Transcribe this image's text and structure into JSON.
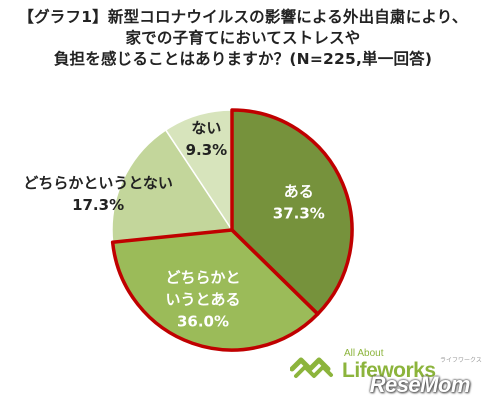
{
  "title_lines": [
    "【グラフ1】新型コロナウイルスの影響による外出自粛により、",
    "家での子育てにおいてストレスや",
    "負担を感じることはありますか？(N=225,単一回答)"
  ],
  "chart_data": {
    "type": "pie",
    "title": "【グラフ1】新型コロナウイルスの影響による外出自粛により、家での子育てにおいてストレスや負担を感じることはありますか？(N=225,単一回答)",
    "slices": [
      {
        "label_lines": [
          "ある"
        ],
        "value": 37.3,
        "value_text": "37.3%",
        "color": "#76923c",
        "text_color": "#ffffff",
        "highlighted": true
      },
      {
        "label_lines": [
          "どちらかと",
          "いうとある"
        ],
        "value": 36.0,
        "value_text": "36.0%",
        "color": "#9bbb59",
        "text_color": "#ffffff",
        "highlighted": true
      },
      {
        "label_lines": [
          "どちらかというとない"
        ],
        "value": 17.3,
        "value_text": "17.3%",
        "color": "#c3d69b",
        "text_color": "#222222",
        "highlighted": false
      },
      {
        "label_lines": [
          "ない"
        ],
        "value": 9.3,
        "value_text": "9.3%",
        "color": "#d7e4bc",
        "text_color": "#222222",
        "highlighted": false
      }
    ],
    "highlight_color": "#c00000"
  },
  "logo": {
    "small_text": "All About",
    "main_text": "Lifeworks",
    "kana_text": "ライフワークス",
    "color": "#8cb43c"
  },
  "watermark": "ReseMom"
}
